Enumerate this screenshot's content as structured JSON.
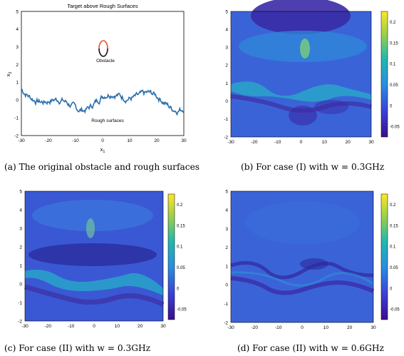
{
  "panel_a": {
    "title": "Target above Rough Surfaces",
    "xlabel": "x1",
    "ylabel": "x2",
    "obstacle_label": "Obstacle",
    "surface_label": "Rough surfaces",
    "xticks": [
      "-30",
      "-20",
      "-10",
      "0",
      "10",
      "20",
      "30"
    ],
    "yticks": [
      "-2",
      "-1",
      "0",
      "1",
      "2",
      "3",
      "4",
      "5"
    ],
    "caption": "(a) The original obstacle and rough surfaces",
    "colors": {
      "surface": "#2b6fad",
      "obstacle_top": "#e0502a",
      "obstacle_bottom": "#111111"
    }
  },
  "panel_b": {
    "caption": "(b) For case (I) with w = 0.3GHz",
    "xticks": [
      "-30",
      "-20",
      "-10",
      "0",
      "10",
      "20",
      "30"
    ],
    "yticks": [
      "-2",
      "-1",
      "0",
      "1",
      "2",
      "3",
      "4",
      "5"
    ],
    "cbar_ticks": [
      "-0.05",
      "0",
      "0.05",
      "0.1",
      "0.15",
      "0.2"
    ]
  },
  "panel_c": {
    "caption": "(c) For case (II) with w = 0.3GHz",
    "xticks": [
      "-30",
      "-20",
      "-10",
      "0",
      "10",
      "20",
      "30"
    ],
    "yticks": [
      "-2",
      "-1",
      "0",
      "1",
      "2",
      "3",
      "4",
      "5"
    ],
    "cbar_ticks": [
      "-0.05",
      "0",
      "0.05",
      "0.1",
      "0.15",
      "0.2"
    ]
  },
  "panel_d": {
    "caption": "(d) For case (II) with w = 0.6GHz",
    "xticks": [
      "-30",
      "-20",
      "-10",
      "0",
      "10",
      "20",
      "30"
    ],
    "yticks": [
      "-2",
      "-1",
      "0",
      "1",
      "2",
      "3",
      "4",
      "5"
    ],
    "cbar_ticks": [
      "-0.05",
      "0",
      "0.05",
      "0.1",
      "0.15",
      "0.2"
    ]
  },
  "colormap": {
    "low": "#3a2fa0",
    "mid": "#2f7fe0",
    "high": "#fde725"
  }
}
